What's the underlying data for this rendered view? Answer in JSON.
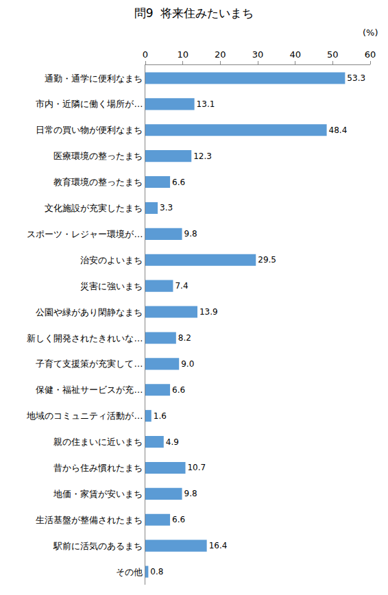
{
  "chart_data": {
    "type": "bar",
    "orientation": "horizontal",
    "title": "問9  将来住みたいまち",
    "xlabel": "(%)",
    "categories": [
      "通勤・通学に便利なまち",
      "市内・近隣に働く場所が…",
      "日常の買い物が便利なまち",
      "医療環境の整ったまち",
      "教育環境の整ったまち",
      "文化施設が充実したまち",
      "スポーツ・レジャー環境が…",
      "治安のよいまち",
      "災害に強いまち",
      "公園や緑があり閑静なまち",
      "新しく開発されたきれいな…",
      "子育て支援策が充実して…",
      "保健・福祉サービスが充…",
      "地域のコミュニティ活動が…",
      "親の住まいに近いまち",
      "昔から住み慣れたまち",
      "地価・家賃が安いまち",
      "生活基盤が整備されたまち",
      "駅前に活気のあるまち",
      "その他"
    ],
    "values": [
      53.3,
      13.1,
      48.4,
      12.3,
      6.6,
      3.3,
      9.8,
      29.5,
      7.4,
      13.9,
      8.2,
      9.0,
      6.6,
      1.6,
      4.9,
      10.7,
      9.8,
      6.6,
      16.4,
      0.8
    ],
    "value_labels": [
      "53.3",
      "13.1",
      "48.4",
      "12.3",
      "6.6",
      "3.3",
      "9.8",
      "29.5",
      "7.4",
      "13.9",
      "8.2",
      "9.0",
      "6.6",
      "1.6",
      "4.9",
      "10.7",
      "9.8",
      "6.6",
      "16.4",
      "0.8"
    ],
    "color": "#5b9bd5",
    "xlim": [
      0,
      60
    ],
    "xticks": [
      0,
      10,
      20,
      30,
      40,
      50,
      60
    ],
    "grid": false,
    "data_labels": true
  }
}
